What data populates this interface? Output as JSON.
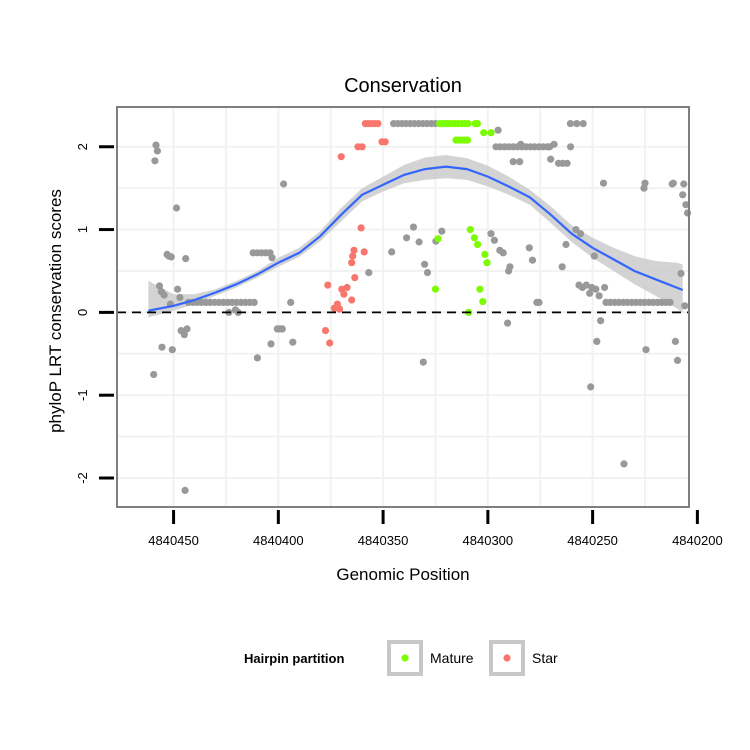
{
  "chart_data": {
    "type": "scatter",
    "title": "Conservation",
    "xlabel": "Genomic Position",
    "ylabel": "phyloP LRT conservation scores",
    "xlim": [
      4840477,
      4840204
    ],
    "x_reversed": true,
    "ylim": [
      -2.35,
      2.48
    ],
    "x_ticks": [
      4840450,
      4840400,
      4840350,
      4840300,
      4840250,
      4840200
    ],
    "x_tick_labels": [
      "4840450",
      "4840400",
      "4840350",
      "4840300",
      "4840250",
      "4840200"
    ],
    "y_ticks": [
      -2,
      -1,
      0,
      1,
      2
    ],
    "y_tick_labels": [
      "-2",
      "-1",
      "0",
      "1",
      "2"
    ],
    "reference_line": {
      "y": 0,
      "style": "dashed"
    },
    "legend": {
      "title": "Hairpin partition",
      "entries": [
        {
          "label": "Mature",
          "color": "#7cfc00"
        },
        {
          "label": "Star",
          "color": "#f8766d"
        }
      ],
      "placement": "bottom"
    },
    "colors": {
      "other": "#999999",
      "mature": "#7cfc00",
      "star": "#f8766d",
      "smooth": "#3366ff",
      "ribbon": "#c8c8c8"
    },
    "smooth_line": {
      "x": [
        4840462,
        4840450,
        4840440,
        4840430,
        4840420,
        4840410,
        4840400,
        4840390,
        4840380,
        4840370,
        4840360,
        4840350,
        4840340,
        4840330,
        4840320,
        4840310,
        4840300,
        4840290,
        4840280,
        4840270,
        4840260,
        4840250,
        4840240,
        4840230,
        4840220,
        4840210,
        4840207
      ],
      "y": [
        0.02,
        0.08,
        0.15,
        0.24,
        0.34,
        0.46,
        0.6,
        0.72,
        0.92,
        1.18,
        1.42,
        1.54,
        1.66,
        1.73,
        1.76,
        1.73,
        1.64,
        1.52,
        1.39,
        1.18,
        0.95,
        0.78,
        0.64,
        0.5,
        0.4,
        0.3,
        0.27
      ],
      "lower": [
        -0.06,
        0.02,
        0.1,
        0.2,
        0.3,
        0.42,
        0.55,
        0.67,
        0.86,
        1.1,
        1.34,
        1.46,
        1.56,
        1.6,
        1.62,
        1.6,
        1.52,
        1.42,
        1.3,
        1.08,
        0.85,
        0.66,
        0.5,
        0.34,
        0.2,
        0.05,
        0.0
      ],
      "upper": [
        0.38,
        0.22,
        0.22,
        0.28,
        0.38,
        0.5,
        0.66,
        0.78,
        0.98,
        1.26,
        1.5,
        1.64,
        1.78,
        1.87,
        1.9,
        1.86,
        1.77,
        1.64,
        1.48,
        1.28,
        1.05,
        0.9,
        0.78,
        0.68,
        0.62,
        0.6,
        0.58
      ]
    },
    "series": [
      {
        "name": "Other",
        "points": [
          [
            4840459.5,
            -0.75
          ],
          [
            4840458.9,
            1.83
          ],
          [
            4840458.4,
            2.02
          ],
          [
            4840457.7,
            1.95
          ],
          [
            4840456.7,
            0.32
          ],
          [
            4840455.8,
            0.25
          ],
          [
            4840455.5,
            -0.42
          ],
          [
            4840454.5,
            0.21
          ],
          [
            4840453.1,
            0.7
          ],
          [
            4840452.3,
            0.68
          ],
          [
            4840451.5,
            0.1
          ],
          [
            4840451.1,
            0.67
          ],
          [
            4840450.6,
            -0.45
          ],
          [
            4840448.6,
            1.26
          ],
          [
            4840448.1,
            0.28
          ],
          [
            4840447.0,
            0.18
          ],
          [
            4840446.4,
            -0.22
          ],
          [
            4840444.9,
            -0.27
          ],
          [
            4840444.5,
            -2.15
          ],
          [
            4840444.2,
            0.65
          ],
          [
            4840443.6,
            -0.2
          ],
          [
            4840442.9,
            0.12
          ],
          [
            4840440.8,
            0.12
          ],
          [
            4840438.7,
            0.12
          ],
          [
            4840436.7,
            0.12
          ],
          [
            4840434.6,
            0.12
          ],
          [
            4840432.5,
            0.12
          ],
          [
            4840430.4,
            0.12
          ],
          [
            4840428.3,
            0.12
          ],
          [
            4840426.2,
            0.12
          ],
          [
            4840424.1,
            0.12
          ],
          [
            4840422.0,
            0.12
          ],
          [
            4840419.9,
            0.12
          ],
          [
            4840417.8,
            0.12
          ],
          [
            4840415.7,
            0.12
          ],
          [
            4840413.6,
            0.12
          ],
          [
            4840411.5,
            0.12
          ],
          [
            4840423.6,
            0.0
          ],
          [
            4840420.5,
            0.03
          ],
          [
            4840419.2,
            0.0
          ],
          [
            4840412.0,
            0.72
          ],
          [
            4840410.0,
            0.72
          ],
          [
            4840408.0,
            0.72
          ],
          [
            4840406.0,
            0.72
          ],
          [
            4840404.0,
            0.72
          ],
          [
            4840403.0,
            0.66
          ],
          [
            4840400.5,
            -0.2
          ],
          [
            4840399.3,
            -0.2
          ],
          [
            4840398.1,
            -0.2
          ],
          [
            4840397.5,
            1.55
          ],
          [
            4840394.1,
            0.12
          ],
          [
            4840393.1,
            -0.36
          ],
          [
            4840410.0,
            -0.55
          ],
          [
            4840403.5,
            -0.38
          ],
          [
            4840345.0,
            2.28
          ],
          [
            4840343.0,
            2.28
          ],
          [
            4840341.0,
            2.28
          ],
          [
            4840339.0,
            2.28
          ],
          [
            4840337.0,
            2.28
          ],
          [
            4840335.0,
            2.28
          ],
          [
            4840333.0,
            2.28
          ],
          [
            4840331.0,
            2.28
          ],
          [
            4840329.0,
            2.28
          ],
          [
            4840327.0,
            2.28
          ],
          [
            4840325.0,
            2.28
          ],
          [
            4840320.0,
            2.28
          ],
          [
            4840356.8,
            0.48
          ],
          [
            4840345.9,
            0.73
          ],
          [
            4840338.8,
            0.9
          ],
          [
            4840335.5,
            1.03
          ],
          [
            4840332.8,
            0.85
          ],
          [
            4840328.8,
            0.48
          ],
          [
            4840330.2,
            0.58
          ],
          [
            4840330.8,
            -0.6
          ],
          [
            4840324.8,
            0.86
          ],
          [
            4840322.0,
            0.98
          ],
          [
            4840298.5,
            0.95
          ],
          [
            4840296.9,
            0.87
          ],
          [
            4840294.3,
            0.75
          ],
          [
            4840292.7,
            0.72
          ],
          [
            4840290.1,
            0.5
          ],
          [
            4840289.5,
            0.55
          ],
          [
            4840290.6,
            -0.13
          ],
          [
            4840296.1,
            2.0
          ],
          [
            4840294.1,
            2.0
          ],
          [
            4840292.0,
            2.0
          ],
          [
            4840290.0,
            2.0
          ],
          [
            4840287.9,
            2.0
          ],
          [
            4840285.9,
            2.0
          ],
          [
            4840283.8,
            2.0
          ],
          [
            4840281.8,
            2.0
          ],
          [
            4840279.7,
            2.0
          ],
          [
            4840277.7,
            2.0
          ],
          [
            4840275.6,
            2.0
          ],
          [
            4840273.6,
            2.0
          ],
          [
            4840271.5,
            2.0
          ],
          [
            4840270.5,
            2.0
          ],
          [
            4840295.1,
            2.2
          ],
          [
            4840287.9,
            1.82
          ],
          [
            4840284.8,
            1.82
          ],
          [
            4840284.3,
            2.03
          ],
          [
            4840280.2,
            0.78
          ],
          [
            4840278.7,
            0.63
          ],
          [
            4840276.6,
            0.12
          ],
          [
            4840275.6,
            0.12
          ],
          [
            4840270.0,
            1.85
          ],
          [
            4840268.4,
            2.03
          ],
          [
            4840266.3,
            1.8
          ],
          [
            4840264.3,
            1.8
          ],
          [
            4840262.2,
            1.8
          ],
          [
            4840260.5,
            2.0
          ],
          [
            4840262.7,
            0.82
          ],
          [
            4840260.6,
            2.28
          ],
          [
            4840257.6,
            2.28
          ],
          [
            4840254.5,
            2.28
          ],
          [
            4840264.5,
            0.55
          ],
          [
            4840258.0,
            1.0
          ],
          [
            4840256.5,
            0.33
          ],
          [
            4840255.8,
            0.95
          ],
          [
            4840254.9,
            0.3
          ],
          [
            4840253.0,
            0.33
          ],
          [
            4840251.4,
            0.23
          ],
          [
            4840250.4,
            0.3
          ],
          [
            4840250.9,
            -0.9
          ],
          [
            4840249.2,
            0.68
          ],
          [
            4840248.0,
            -0.35
          ],
          [
            4840248.5,
            0.28
          ],
          [
            4840246.9,
            0.2
          ],
          [
            4840246.2,
            -0.1
          ],
          [
            4840244.8,
            1.56
          ],
          [
            4840244.3,
            0.3
          ],
          [
            4840243.6,
            0.12
          ],
          [
            4840241.6,
            0.12
          ],
          [
            4840239.5,
            0.12
          ],
          [
            4840237.5,
            0.12
          ],
          [
            4840235.4,
            0.12
          ],
          [
            4840233.4,
            0.12
          ],
          [
            4840231.3,
            0.12
          ],
          [
            4840229.3,
            0.12
          ],
          [
            4840227.2,
            0.12
          ],
          [
            4840225.2,
            0.12
          ],
          [
            4840223.1,
            0.12
          ],
          [
            4840221.1,
            0.12
          ],
          [
            4840219.0,
            0.12
          ],
          [
            4840217.0,
            0.12
          ],
          [
            4840215.0,
            0.12
          ],
          [
            4840213.0,
            0.12
          ],
          [
            4840235.0,
            -1.83
          ],
          [
            4840225.5,
            1.5
          ],
          [
            4840225.0,
            1.56
          ],
          [
            4840224.5,
            -0.45
          ],
          [
            4840212.0,
            1.55
          ],
          [
            4840211.5,
            1.56
          ],
          [
            4840210.5,
            -0.35
          ],
          [
            4840209.5,
            -0.58
          ],
          [
            4840207.8,
            0.47
          ],
          [
            4840207.0,
            1.42
          ],
          [
            4840206.5,
            1.55
          ],
          [
            4840205.5,
            1.3
          ],
          [
            4840204.7,
            1.2
          ],
          [
            4840206.0,
            0.08
          ]
        ]
      },
      {
        "name": "Mature",
        "points": [
          [
            4840323.0,
            2.28
          ],
          [
            4840321.5,
            2.28
          ],
          [
            4840320.0,
            2.28
          ],
          [
            4840318.5,
            2.28
          ],
          [
            4840317.0,
            2.28
          ],
          [
            4840315.5,
            2.28
          ],
          [
            4840314.0,
            2.28
          ],
          [
            4840312.5,
            2.28
          ],
          [
            4840311.0,
            2.28
          ],
          [
            4840309.5,
            2.28
          ],
          [
            4840306.0,
            2.28
          ],
          [
            4840305.0,
            2.28
          ],
          [
            4840315.2,
            2.08
          ],
          [
            4840313.8,
            2.08
          ],
          [
            4840312.5,
            2.08
          ],
          [
            4840311.1,
            2.08
          ],
          [
            4840309.7,
            2.08
          ],
          [
            4840302.0,
            2.17
          ],
          [
            4840298.5,
            2.17
          ],
          [
            4840325.0,
            0.28
          ],
          [
            4840323.8,
            0.89
          ],
          [
            4840309.2,
            0.0
          ],
          [
            4840308.4,
            1.0
          ],
          [
            4840306.4,
            0.9
          ],
          [
            4840304.9,
            0.82
          ],
          [
            4840303.8,
            0.28
          ],
          [
            4840302.4,
            0.13
          ],
          [
            4840301.4,
            0.7
          ],
          [
            4840300.4,
            0.6
          ]
        ]
      },
      {
        "name": "Star",
        "points": [
          [
            4840358.5,
            2.28
          ],
          [
            4840357.0,
            2.28
          ],
          [
            4840355.5,
            2.28
          ],
          [
            4840354.0,
            2.28
          ],
          [
            4840352.5,
            2.28
          ],
          [
            4840349.0,
            2.06
          ],
          [
            4840350.5,
            2.06
          ],
          [
            4840360.0,
            2.0
          ],
          [
            4840362.0,
            2.0
          ],
          [
            4840370.0,
            1.88
          ],
          [
            4840363.9,
            0.75
          ],
          [
            4840360.5,
            1.02
          ],
          [
            4840359.0,
            0.73
          ],
          [
            4840365.0,
            0.6
          ],
          [
            4840364.5,
            0.68
          ],
          [
            4840376.4,
            0.33
          ],
          [
            4840373.3,
            0.05
          ],
          [
            4840371.8,
            0.1
          ],
          [
            4840369.7,
            0.28
          ],
          [
            4840368.7,
            0.22
          ],
          [
            4840367.2,
            0.3
          ],
          [
            4840365.0,
            0.15
          ],
          [
            4840363.5,
            0.42
          ],
          [
            4840370.8,
            0.04
          ],
          [
            4840377.5,
            -0.22
          ],
          [
            4840375.5,
            -0.37
          ]
        ]
      }
    ]
  }
}
